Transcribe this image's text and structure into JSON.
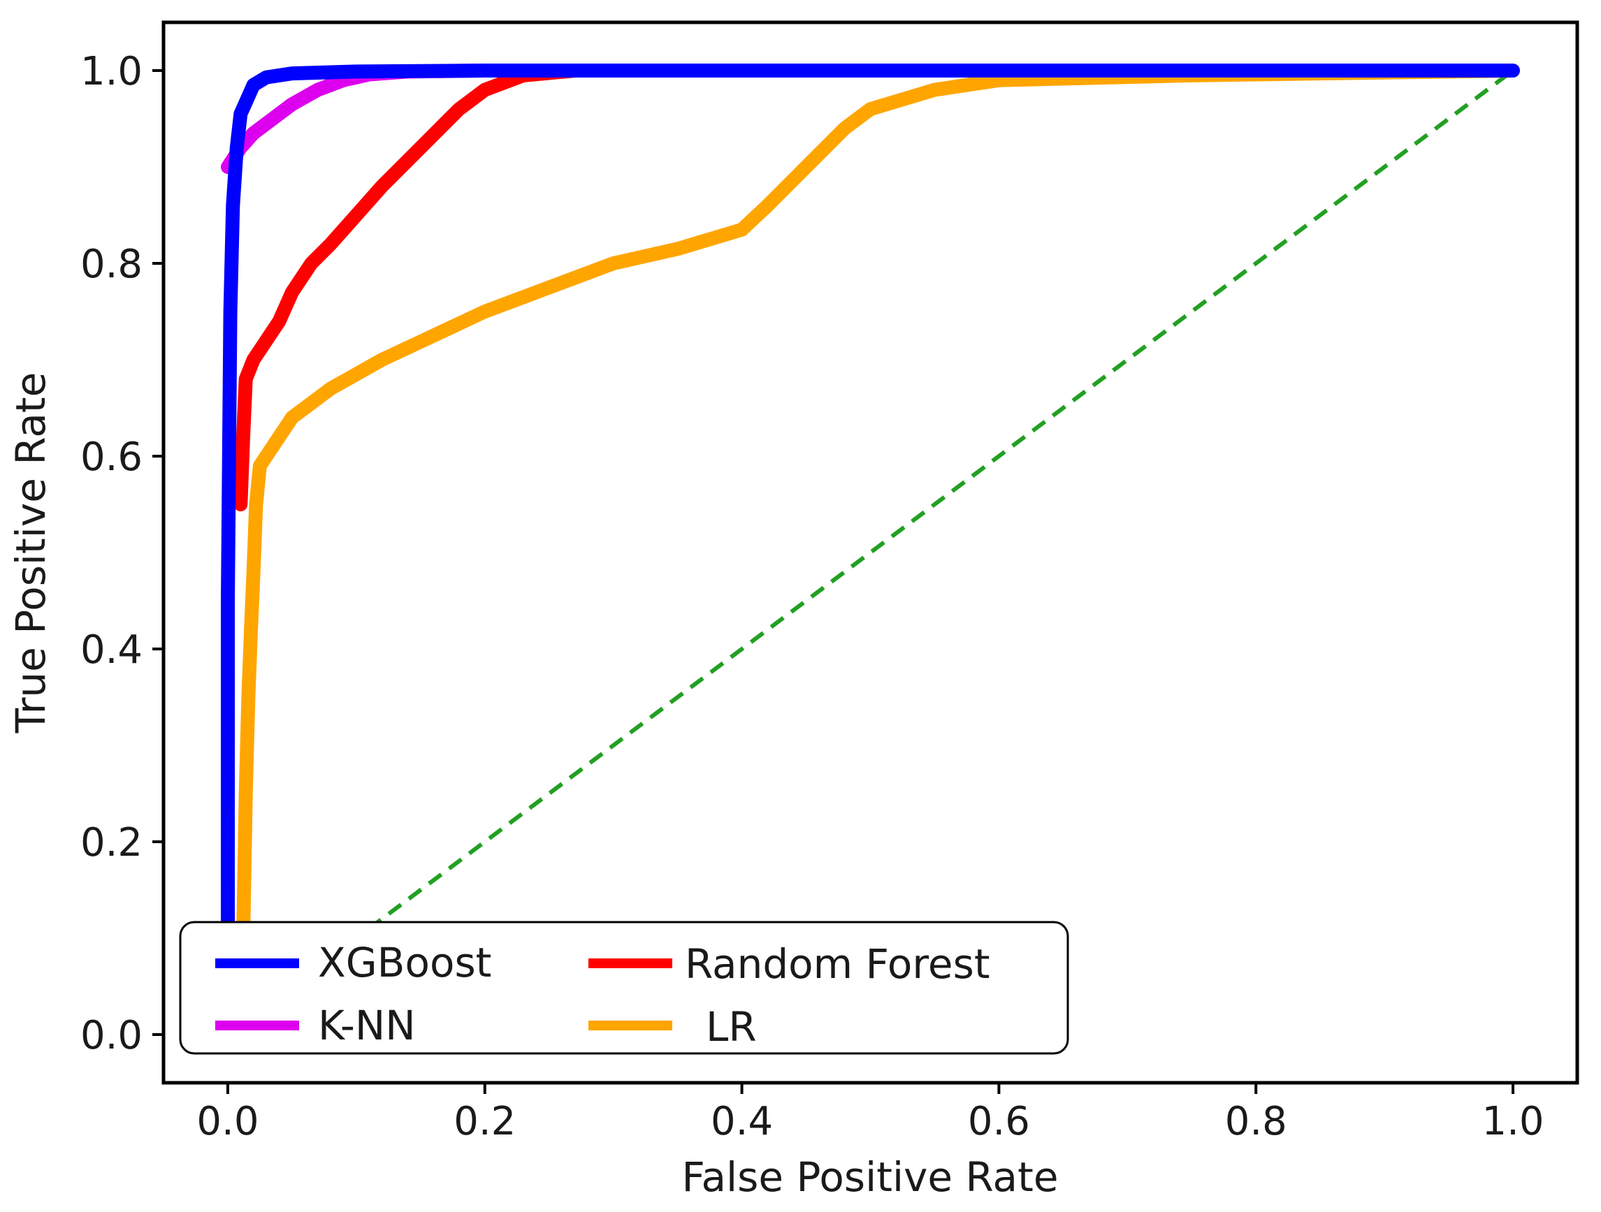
{
  "chart_data": {
    "type": "line",
    "title": "",
    "xlabel": "False Positive Rate",
    "ylabel": "True Positive Rate",
    "xlim": [
      -0.05,
      1.05
    ],
    "ylim": [
      -0.05,
      1.05
    ],
    "xticks": [
      0.0,
      0.2,
      0.4,
      0.6,
      0.8,
      1.0
    ],
    "yticks": [
      0.0,
      0.2,
      0.4,
      0.6,
      0.8,
      1.0
    ],
    "xtick_labels": [
      "0.0",
      "0.2",
      "0.4",
      "0.6",
      "0.8",
      "1.0"
    ],
    "ytick_labels": [
      "0.0",
      "0.2",
      "0.4",
      "0.6",
      "0.8",
      "1.0"
    ],
    "grid": false,
    "legend": {
      "placement": "lower-left",
      "columns": 2
    },
    "series": [
      {
        "name": "XGBoost",
        "color": "#0000ff",
        "x": [
          0.0,
          0.0,
          0.002,
          0.004,
          0.007,
          0.01,
          0.015,
          0.02,
          0.03,
          0.05,
          0.1,
          0.2,
          0.4,
          0.6,
          0.8,
          1.0
        ],
        "y": [
          0.1,
          0.45,
          0.75,
          0.86,
          0.92,
          0.955,
          0.97,
          0.985,
          0.993,
          0.997,
          0.999,
          1.0,
          1.0,
          1.0,
          1.0,
          1.0
        ]
      },
      {
        "name": "K-NN",
        "color": "#dd00ee",
        "x": [
          0.0,
          0.005,
          0.01,
          0.02,
          0.035,
          0.05,
          0.07,
          0.09,
          0.11,
          0.14,
          0.2
        ],
        "y": [
          0.9,
          0.91,
          0.92,
          0.935,
          0.95,
          0.965,
          0.98,
          0.99,
          0.996,
          0.999,
          1.0
        ]
      },
      {
        "name": "Random Forest",
        "color": "#ff0000",
        "x": [
          0.01,
          0.012,
          0.014,
          0.017,
          0.02,
          0.03,
          0.04,
          0.05,
          0.065,
          0.08,
          0.1,
          0.12,
          0.15,
          0.18,
          0.2,
          0.23,
          0.27
        ],
        "y": [
          0.55,
          0.62,
          0.68,
          0.69,
          0.7,
          0.72,
          0.74,
          0.77,
          0.8,
          0.82,
          0.85,
          0.88,
          0.92,
          0.96,
          0.98,
          0.995,
          1.0
        ]
      },
      {
        "name": "LR",
        "color": "#ffa500",
        "x": [
          0.012,
          0.014,
          0.016,
          0.018,
          0.02,
          0.022,
          0.025,
          0.03,
          0.05,
          0.08,
          0.12,
          0.16,
          0.2,
          0.25,
          0.3,
          0.35,
          0.4,
          0.42,
          0.45,
          0.48,
          0.5,
          0.55,
          0.6,
          0.75,
          1.0
        ],
        "y": [
          0.1,
          0.25,
          0.35,
          0.42,
          0.48,
          0.55,
          0.59,
          0.6,
          0.64,
          0.67,
          0.7,
          0.725,
          0.75,
          0.775,
          0.8,
          0.815,
          0.835,
          0.86,
          0.9,
          0.94,
          0.96,
          0.98,
          0.99,
          0.995,
          1.0
        ]
      }
    ],
    "reference_line": {
      "style": "dashed",
      "color": "#22a022",
      "x": [
        0.0,
        1.0
      ],
      "y": [
        0.0,
        1.0
      ]
    }
  }
}
